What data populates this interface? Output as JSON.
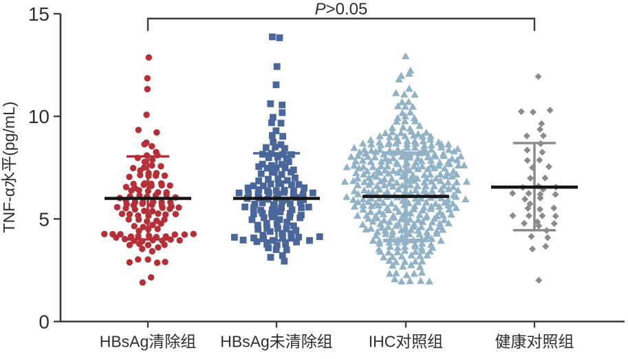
{
  "chart_data": {
    "type": "scatter",
    "subtype": "beeswarm-with-mean-sd-errorbars",
    "title": "",
    "xlabel": "",
    "ylabel": "TNF-α水平(pg/mL)",
    "ylim": [
      0,
      15
    ],
    "yticks": [
      0,
      5,
      10,
      15
    ],
    "grid": false,
    "legend": "none",
    "significance": {
      "label": "P>0.05",
      "label_italic": "P",
      "label_rest": ">0.05",
      "between": [
        "HBsAg清除组",
        "健康对照组"
      ]
    },
    "value_unit": "pg/mL",
    "groups": [
      {
        "name": "HBsAg清除组",
        "marker": "circle",
        "color": "#B62E36",
        "mean": 6.0,
        "sd_top": 8.05,
        "sd_bottom": 4.0,
        "rows": [
          [
            12.85,
            1
          ],
          [
            11.9,
            1
          ],
          [
            11.35,
            1
          ],
          [
            10.0,
            1
          ],
          [
            9.4,
            1,
            -12
          ],
          [
            9.2,
            1,
            12
          ],
          [
            8.8,
            1,
            -4
          ],
          [
            8.6,
            2
          ],
          [
            8.3,
            1,
            14
          ],
          [
            8.05,
            3
          ],
          [
            7.8,
            2
          ],
          [
            7.55,
            4
          ],
          [
            7.3,
            3
          ],
          [
            7.05,
            5
          ],
          [
            6.8,
            4
          ],
          [
            6.6,
            6
          ],
          [
            6.35,
            5
          ],
          [
            6.1,
            7
          ],
          [
            5.9,
            6
          ],
          [
            5.65,
            8
          ],
          [
            5.45,
            6
          ],
          [
            5.2,
            7
          ],
          [
            4.95,
            5
          ],
          [
            4.7,
            4
          ],
          [
            4.5,
            3
          ],
          [
            4.2,
            11
          ],
          [
            4.0,
            8
          ],
          [
            3.7,
            5
          ],
          [
            3.45,
            2
          ],
          [
            2.95,
            5
          ],
          [
            2.2,
            1,
            5
          ],
          [
            1.9,
            1,
            -6
          ]
        ]
      },
      {
        "name": "HBsAg未清除组",
        "marker": "square",
        "color": "#49679A",
        "mean": 6.0,
        "sd_top": 8.2,
        "sd_bottom": 3.95,
        "rows": [
          [
            13.8,
            2
          ],
          [
            12.4,
            1
          ],
          [
            11.6,
            1
          ],
          [
            10.55,
            2
          ],
          [
            10.2,
            1,
            10
          ],
          [
            9.9,
            1,
            -6
          ],
          [
            9.6,
            2
          ],
          [
            9.3,
            1
          ],
          [
            9.0,
            2
          ],
          [
            8.7,
            2
          ],
          [
            8.45,
            3
          ],
          [
            8.2,
            4
          ],
          [
            7.95,
            3
          ],
          [
            7.7,
            4
          ],
          [
            7.45,
            5
          ],
          [
            7.2,
            4
          ],
          [
            6.95,
            5
          ],
          [
            6.7,
            6
          ],
          [
            6.45,
            7
          ],
          [
            6.25,
            9
          ],
          [
            6.0,
            7
          ],
          [
            5.75,
            6
          ],
          [
            5.5,
            8
          ],
          [
            5.25,
            6
          ],
          [
            5.0,
            6
          ],
          [
            4.75,
            5
          ],
          [
            4.5,
            5
          ],
          [
            4.3,
            4
          ],
          [
            4.05,
            10
          ],
          [
            3.8,
            5
          ],
          [
            3.55,
            3
          ],
          [
            3.2,
            2
          ],
          [
            2.85,
            1,
            10
          ]
        ]
      },
      {
        "name": "IHC对照组",
        "marker": "triangle",
        "color": "#92B3C7",
        "mean": 6.1,
        "sd_top": 8.2,
        "sd_bottom": 3.95,
        "rows": [
          [
            12.85,
            1
          ],
          [
            12.3,
            1,
            6
          ],
          [
            12.05,
            2
          ],
          [
            11.75,
            1,
            -8
          ],
          [
            11.3,
            1,
            4
          ],
          [
            11.05,
            3
          ],
          [
            10.75,
            2
          ],
          [
            10.5,
            3
          ],
          [
            10.2,
            2
          ],
          [
            9.95,
            3
          ],
          [
            9.7,
            3
          ],
          [
            9.45,
            4
          ],
          [
            9.2,
            6
          ],
          [
            9.0,
            7
          ],
          [
            8.8,
            9
          ],
          [
            8.6,
            11
          ],
          [
            8.4,
            13
          ],
          [
            8.2,
            12
          ],
          [
            8.0,
            14
          ],
          [
            7.8,
            13
          ],
          [
            7.6,
            15
          ],
          [
            7.4,
            12
          ],
          [
            7.2,
            13
          ],
          [
            7.0,
            12
          ],
          [
            6.8,
            15
          ],
          [
            6.6,
            12
          ],
          [
            6.4,
            13
          ],
          [
            6.2,
            12
          ],
          [
            6.0,
            15
          ],
          [
            5.8,
            12
          ],
          [
            5.6,
            13
          ],
          [
            5.4,
            11
          ],
          [
            5.2,
            12
          ],
          [
            5.0,
            10
          ],
          [
            4.8,
            11
          ],
          [
            4.6,
            9
          ],
          [
            4.4,
            10
          ],
          [
            4.2,
            8
          ],
          [
            4.0,
            9
          ],
          [
            3.8,
            7
          ],
          [
            3.6,
            7
          ],
          [
            3.4,
            7
          ],
          [
            3.2,
            6
          ],
          [
            2.95,
            5
          ],
          [
            2.7,
            4
          ],
          [
            2.3,
            5
          ],
          [
            2.0,
            5,
            8
          ]
        ]
      },
      {
        "name": "健康对照组",
        "marker": "diamond",
        "color": "#8B8B8B",
        "mean": 6.55,
        "sd_top": 8.7,
        "sd_bottom": 4.45,
        "rows": [
          [
            11.9,
            1,
            8
          ],
          [
            10.25,
            3
          ],
          [
            9.7,
            1,
            9
          ],
          [
            9.35,
            1,
            9
          ],
          [
            9.0,
            2
          ],
          [
            8.75,
            1,
            9
          ],
          [
            8.3,
            2
          ],
          [
            7.8,
            2,
            -1
          ],
          [
            7.5,
            2,
            9
          ],
          [
            7.05,
            2,
            7
          ],
          [
            6.6,
            2,
            -5
          ],
          [
            6.5,
            2,
            23
          ],
          [
            6.2,
            4
          ],
          [
            5.95,
            2,
            -3
          ],
          [
            5.7,
            1,
            -8
          ],
          [
            5.55,
            2,
            18
          ],
          [
            5.45,
            1,
            -9
          ],
          [
            5.1,
            4
          ],
          [
            4.85,
            2,
            -6
          ],
          [
            4.7,
            2,
            16
          ],
          [
            4.45,
            1,
            18
          ],
          [
            4.1,
            2,
            7
          ],
          [
            3.6,
            2,
            7
          ],
          [
            2.0,
            1,
            8
          ]
        ]
      }
    ]
  }
}
